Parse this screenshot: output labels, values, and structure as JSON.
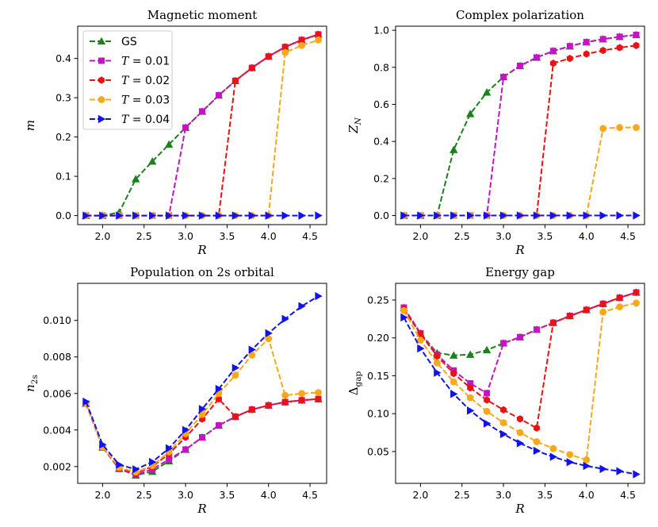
{
  "chart_data": [
    {
      "type": "line",
      "title": "Magnetic moment",
      "xlabel": "R",
      "ylabel": "m",
      "xlim": [
        1.7,
        4.7
      ],
      "ylim": [
        -0.023,
        0.482
      ],
      "xticks": [
        2.0,
        2.5,
        3.0,
        3.5,
        4.0,
        4.5
      ],
      "xtick_labels": [
        "2.0",
        "2.5",
        "3.0",
        "3.5",
        "4.0",
        "4.5"
      ],
      "yticks": [
        0.0,
        0.1,
        0.2,
        0.3,
        0.4
      ],
      "ytick_labels": [
        "0.0",
        "0.1",
        "0.2",
        "0.3",
        "0.4"
      ],
      "x": [
        1.8,
        2.0,
        2.2,
        2.4,
        2.6,
        2.8,
        3.0,
        3.2,
        3.4,
        3.6,
        3.8,
        4.0,
        4.2,
        4.4,
        4.6
      ],
      "series": [
        {
          "name": "GS",
          "values": [
            0.0,
            0.0,
            0.008,
            0.093,
            0.138,
            0.181,
            0.224,
            0.265,
            0.306,
            0.343,
            0.376,
            0.405,
            0.429,
            0.447,
            0.461
          ]
        },
        {
          "name": "T=0.01",
          "values": [
            0.0,
            0.0,
            0.0,
            0.0,
            0.0,
            0.0,
            0.224,
            0.265,
            0.306,
            0.343,
            0.376,
            0.405,
            0.429,
            0.447,
            0.461
          ]
        },
        {
          "name": "T=0.02",
          "values": [
            0.0,
            0.0,
            0.0,
            0.0,
            0.0,
            0.0,
            0.0,
            0.0,
            0.0,
            0.343,
            0.376,
            0.405,
            0.429,
            0.447,
            0.461
          ]
        },
        {
          "name": "T=0.03",
          "values": [
            0.0,
            0.0,
            0.0,
            0.0,
            0.0,
            0.0,
            0.0,
            0.0,
            0.0,
            0.0,
            0.0,
            0.0,
            0.415,
            0.433,
            0.447
          ]
        },
        {
          "name": "T=0.04",
          "values": [
            0.0,
            0.0,
            0.0,
            0.0,
            0.0,
            0.0,
            0.0,
            0.0,
            0.0,
            0.0,
            0.0,
            0.0,
            0.0,
            0.0,
            0.0
          ]
        }
      ],
      "legend": {
        "location": "upper-left",
        "entries": [
          {
            "prefix": "GS",
            "italic": "",
            "suffix": ""
          },
          {
            "prefix": "",
            "italic": "T",
            "suffix": " = 0.01"
          },
          {
            "prefix": "",
            "italic": "T",
            "suffix": " = 0.02"
          },
          {
            "prefix": "",
            "italic": "T",
            "suffix": " = 0.03"
          },
          {
            "prefix": "",
            "italic": "T",
            "suffix": " = 0.04"
          }
        ]
      }
    },
    {
      "type": "line",
      "title": "Complex polarization",
      "xlabel": "R",
      "ylabel": "Z",
      "ylabel_sub": "N",
      "xlim": [
        1.7,
        4.7
      ],
      "ylim": [
        -0.049,
        1.022
      ],
      "xticks": [
        2.0,
        2.5,
        3.0,
        3.5,
        4.0,
        4.5
      ],
      "xtick_labels": [
        "2.0",
        "2.5",
        "3.0",
        "3.5",
        "4.0",
        "4.5"
      ],
      "yticks": [
        0.0,
        0.2,
        0.4,
        0.6,
        0.8,
        1.0
      ],
      "ytick_labels": [
        "0.0",
        "0.2",
        "0.4",
        "0.6",
        "0.8",
        "1.0"
      ],
      "x": [
        1.8,
        2.0,
        2.2,
        2.4,
        2.6,
        2.8,
        3.0,
        3.2,
        3.4,
        3.6,
        3.8,
        4.0,
        4.2,
        4.4,
        4.6
      ],
      "series": [
        {
          "name": "GS",
          "values": [
            0.0,
            0.0,
            0.0,
            0.355,
            0.549,
            0.665,
            0.748,
            0.808,
            0.853,
            0.888,
            0.914,
            0.936,
            0.952,
            0.965,
            0.975
          ]
        },
        {
          "name": "T=0.01",
          "values": [
            0.0,
            0.0,
            0.0,
            0.0,
            0.0,
            0.0,
            0.748,
            0.808,
            0.853,
            0.888,
            0.914,
            0.936,
            0.952,
            0.965,
            0.975
          ]
        },
        {
          "name": "T=0.02",
          "values": [
            0.0,
            0.0,
            0.0,
            0.0,
            0.0,
            0.0,
            0.0,
            0.0,
            0.0,
            0.822,
            0.848,
            0.872,
            0.891,
            0.906,
            0.918
          ]
        },
        {
          "name": "T=0.03",
          "values": [
            0.0,
            0.0,
            0.0,
            0.0,
            0.0,
            0.0,
            0.0,
            0.0,
            0.0,
            0.0,
            0.0,
            0.0,
            0.47,
            0.475,
            0.475
          ]
        },
        {
          "name": "T=0.04",
          "values": [
            0.0,
            0.0,
            0.0,
            0.0,
            0.0,
            0.0,
            0.0,
            0.0,
            0.0,
            0.0,
            0.0,
            0.0,
            0.0,
            0.0,
            0.0
          ]
        }
      ]
    },
    {
      "type": "line",
      "title": "Population on 2s orbital",
      "xlabel": "R",
      "ylabel": "n",
      "ylabel_sub": "2s",
      "xlim": [
        1.7,
        4.7
      ],
      "ylim": [
        0.00108,
        0.01203
      ],
      "xticks": [
        2.0,
        2.5,
        3.0,
        3.5,
        4.0,
        4.5
      ],
      "xtick_labels": [
        "2.0",
        "2.5",
        "3.0",
        "3.5",
        "4.0",
        "4.5"
      ],
      "yticks": [
        0.002,
        0.004,
        0.006,
        0.008,
        0.01
      ],
      "ytick_labels": [
        "0.002",
        "0.004",
        "0.006",
        "0.008",
        "0.010"
      ],
      "x": [
        1.8,
        2.0,
        2.2,
        2.4,
        2.6,
        2.8,
        3.0,
        3.2,
        3.4,
        3.6,
        3.8,
        4.0,
        4.2,
        4.4,
        4.6
      ],
      "series": [
        {
          "name": "GS",
          "values": [
            0.00545,
            0.00305,
            0.00188,
            0.00152,
            0.00172,
            0.0023,
            0.00293,
            0.0036,
            0.00425,
            0.00473,
            0.00512,
            0.00535,
            0.00553,
            0.00563,
            0.0057
          ]
        },
        {
          "name": "T=0.01",
          "values": [
            0.00545,
            0.00305,
            0.00188,
            0.00155,
            0.00185,
            0.0024,
            0.00293,
            0.0036,
            0.00425,
            0.00473,
            0.00512,
            0.00535,
            0.00553,
            0.00563,
            0.0057
          ]
        },
        {
          "name": "T=0.02",
          "values": [
            0.00545,
            0.00305,
            0.0019,
            0.00163,
            0.002,
            0.0027,
            0.0036,
            0.0046,
            0.0057,
            0.00473,
            0.00512,
            0.00535,
            0.00553,
            0.00563,
            0.0057
          ]
        },
        {
          "name": "T=0.03",
          "values": [
            0.00545,
            0.00307,
            0.00195,
            0.0017,
            0.00205,
            0.0028,
            0.0038,
            0.00485,
            0.006,
            0.007,
            0.0081,
            0.009,
            0.0059,
            0.006,
            0.00605
          ]
        },
        {
          "name": "T=0.04",
          "values": [
            0.00555,
            0.0032,
            0.0021,
            0.00185,
            0.00225,
            0.003,
            0.004,
            0.00515,
            0.00625,
            0.0074,
            0.0084,
            0.0093,
            0.01008,
            0.01078,
            0.01133
          ]
        }
      ]
    },
    {
      "type": "line",
      "title": "Energy gap",
      "xlabel": "R",
      "ylabel": "Δ",
      "ylabel_sub": "gap",
      "xlim": [
        1.7,
        4.7
      ],
      "ylim": [
        0.008,
        0.272
      ],
      "xticks": [
        2.0,
        2.5,
        3.0,
        3.5,
        4.0,
        4.5
      ],
      "xtick_labels": [
        "2.0",
        "2.5",
        "3.0",
        "3.5",
        "4.0",
        "4.5"
      ],
      "yticks": [
        0.05,
        0.1,
        0.15,
        0.2,
        0.25
      ],
      "ytick_labels": [
        "0.05",
        "0.10",
        "0.15",
        "0.20",
        "0.25"
      ],
      "x": [
        1.8,
        2.0,
        2.2,
        2.4,
        2.6,
        2.8,
        3.0,
        3.2,
        3.4,
        3.6,
        3.8,
        4.0,
        4.2,
        4.4,
        4.6
      ],
      "series": [
        {
          "name": "GS",
          "values": [
            0.24,
            0.206,
            0.18,
            0.177,
            0.178,
            0.184,
            0.193,
            0.201,
            0.211,
            0.22,
            0.229,
            0.237,
            0.245,
            0.253,
            0.26
          ]
        },
        {
          "name": "T=0.01",
          "values": [
            0.24,
            0.206,
            0.178,
            0.157,
            0.14,
            0.127,
            0.193,
            0.201,
            0.211,
            0.22,
            0.229,
            0.237,
            0.245,
            0.253,
            0.26
          ]
        },
        {
          "name": "T=0.02",
          "values": [
            0.238,
            0.205,
            0.176,
            0.153,
            0.134,
            0.118,
            0.105,
            0.093,
            0.081,
            0.22,
            0.229,
            0.237,
            0.245,
            0.253,
            0.26
          ]
        },
        {
          "name": "T=0.03",
          "values": [
            0.236,
            0.197,
            0.167,
            0.142,
            0.121,
            0.103,
            0.088,
            0.075,
            0.063,
            0.054,
            0.046,
            0.039,
            0.234,
            0.241,
            0.246
          ]
        },
        {
          "name": "T=0.04",
          "values": [
            0.227,
            0.186,
            0.154,
            0.126,
            0.104,
            0.087,
            0.073,
            0.061,
            0.051,
            0.043,
            0.036,
            0.031,
            0.027,
            0.024,
            0.02
          ]
        }
      ]
    }
  ],
  "series_colors": [
    "#1a821a",
    "#c414c4",
    "#ee1111",
    "#f9a81a",
    "#1212ee"
  ],
  "series_markers": [
    "triangle-up",
    "square",
    "hexagon",
    "circle",
    "triangle-right"
  ]
}
